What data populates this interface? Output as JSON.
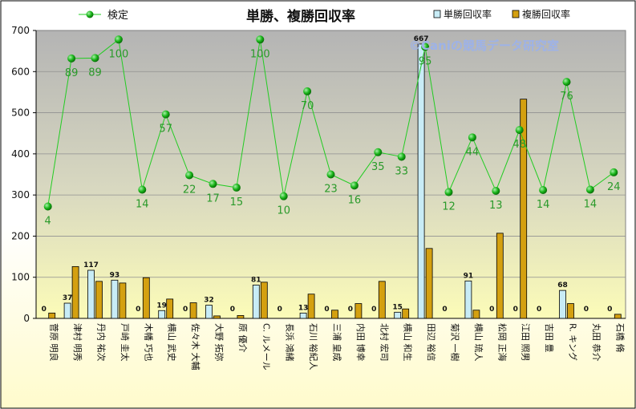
{
  "chart_data": {
    "type": "bar",
    "title": "単勝、複勝回収率",
    "watermark": "©Caniの競馬データ研究室",
    "ylim": [
      0,
      700
    ],
    "yticks": [
      0,
      100,
      200,
      300,
      400,
      500,
      600,
      700
    ],
    "grid": true,
    "legend": "top",
    "categories": [
      "菅原 明良",
      "津村 明秀",
      "丹内 祐次",
      "戸崎 圭太",
      "木幡 巧也",
      "横山 武史",
      "佐々木 大輔",
      "大野 拓弥",
      "原 優介",
      "C. ルメール",
      "長浜 鴻緒",
      "石川 裕紀人",
      "三浦 皇成",
      "内田 博幸",
      "北村 宏司",
      "横山 和生",
      "田辺 裕信",
      "菊沢 一樹",
      "横山 琉人",
      "松岡 正海",
      "江田 照男",
      "吉田 豊",
      "R. キング",
      "丸田 恭介",
      "石橋 脩"
    ],
    "series": [
      {
        "name": "単勝回収率",
        "kind": "bar",
        "color": "#c8ecf6",
        "values": [
          0,
          37,
          117,
          93,
          0,
          19,
          0,
          32,
          0,
          81,
          0,
          13,
          0,
          0,
          0,
          15,
          667,
          0,
          91,
          0,
          0,
          0,
          68,
          0,
          0
        ]
      },
      {
        "name": "複勝回収率",
        "kind": "bar",
        "color": "#d4a010",
        "values": [
          13,
          126,
          90,
          86,
          99,
          47,
          38,
          6,
          7,
          88,
          0,
          59,
          20,
          36,
          90,
          23,
          170,
          0,
          20,
          207,
          533,
          0,
          36,
          0,
          10
        ]
      },
      {
        "name": "検定",
        "kind": "line",
        "color": "#22cc22",
        "values": [
          272,
          632,
          633,
          678,
          313,
          496,
          348,
          327,
          318,
          678,
          297,
          552,
          350,
          323,
          404,
          393,
          660,
          307,
          440,
          310,
          458,
          312,
          575,
          313,
          355
        ],
        "labels": [
          4,
          89,
          89,
          100,
          14,
          57,
          22,
          17,
          15,
          100,
          10,
          70,
          23,
          16,
          35,
          33,
          95,
          12,
          44,
          13,
          48,
          14,
          76,
          14,
          24
        ]
      }
    ]
  }
}
